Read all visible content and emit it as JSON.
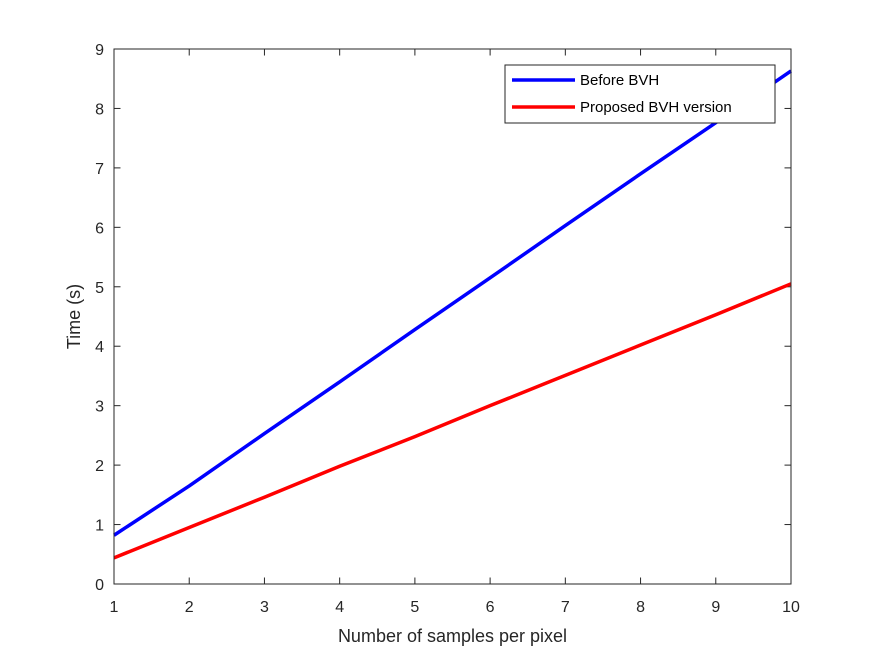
{
  "chart_data": {
    "type": "line",
    "title": "",
    "xlabel": "Number of samples per pixel",
    "ylabel": "Time (s)",
    "xlim": [
      1,
      10
    ],
    "ylim": [
      0,
      9
    ],
    "xticks": [
      "1",
      "2",
      "3",
      "4",
      "5",
      "6",
      "7",
      "8",
      "9",
      "10"
    ],
    "yticks": [
      "0",
      "1",
      "2",
      "3",
      "4",
      "5",
      "6",
      "7",
      "8",
      "9"
    ],
    "grid": false,
    "legend_position": "top-right",
    "x": [
      1,
      2,
      3,
      4,
      5,
      6,
      7,
      8,
      9,
      10
    ],
    "series": [
      {
        "name": "Before BVH",
        "color": "#0000ff",
        "values": [
          0.82,
          1.65,
          2.53,
          3.4,
          4.28,
          5.15,
          6.03,
          6.9,
          7.76,
          8.63
        ]
      },
      {
        "name": "Proposed BVH version",
        "color": "#ff0000",
        "values": [
          0.44,
          0.95,
          1.46,
          1.98,
          2.48,
          3.0,
          3.51,
          4.02,
          4.53,
          5.05
        ]
      }
    ]
  }
}
